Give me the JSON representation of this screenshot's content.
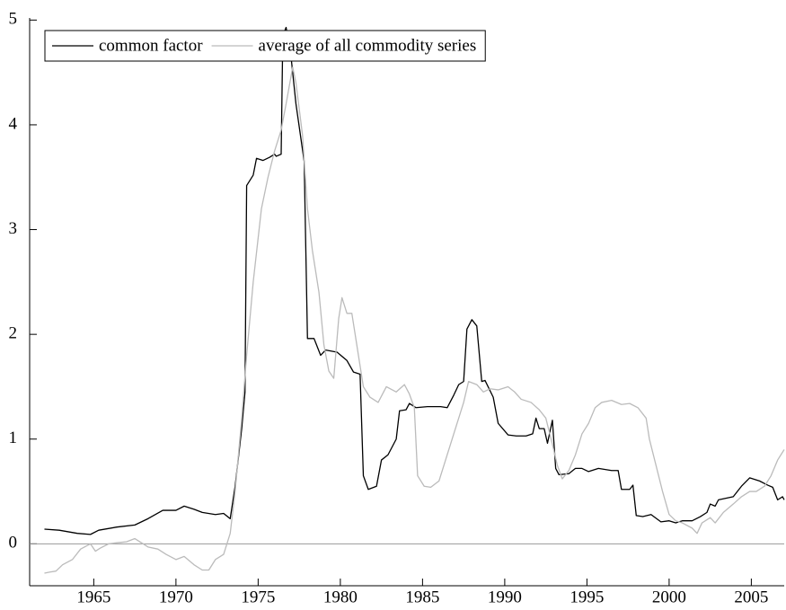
{
  "chart_data": {
    "type": "line",
    "xlim": [
      1961.1,
      2007.0
    ],
    "xticks": [
      1965,
      1970,
      1975,
      1980,
      1985,
      1990,
      1995,
      2000,
      2005
    ],
    "ylim": [
      -0.4,
      5.02
    ],
    "yticks": [
      0,
      1,
      2,
      3,
      4,
      5
    ],
    "zero_line": true,
    "legend": "upper left",
    "series": [
      {
        "name": "common factor",
        "color": "#000000",
        "x": [
          1962.0,
          1962.9,
          1964.0,
          1964.8,
          1965.3,
          1966.4,
          1967.5,
          1968.3,
          1969.2,
          1970.0,
          1970.5,
          1971.1,
          1971.6,
          1972.4,
          1972.9,
          1973.3,
          1973.6,
          1974.0,
          1974.2,
          1974.3,
          1974.7,
          1974.9,
          1975.3,
          1975.7,
          1976.0,
          1976.1,
          1976.4,
          1976.5,
          1976.7,
          1977.0,
          1977.3,
          1977.8,
          1978.0,
          1978.4,
          1978.8,
          1979.1,
          1979.8,
          1980.4,
          1980.8,
          1981.2,
          1981.4,
          1981.7,
          1982.2,
          1982.5,
          1982.9,
          1983.4,
          1983.6,
          1984.0,
          1984.2,
          1984.6,
          1985.3,
          1986.1,
          1986.5,
          1986.9,
          1987.2,
          1987.5,
          1987.7,
          1988.0,
          1988.3,
          1988.6,
          1988.8,
          1989.3,
          1989.6,
          1990.2,
          1990.7,
          1991.3,
          1991.7,
          1991.9,
          1992.1,
          1992.4,
          1992.6,
          1992.9,
          1993.1,
          1993.3,
          1993.9,
          1994.3,
          1994.7,
          1995.1,
          1995.7,
          1996.5,
          1996.9,
          1997.1,
          1997.6,
          1997.8,
          1998.0,
          1998.4,
          1998.9,
          1999.5,
          2000.0,
          2000.4,
          2000.8,
          2001.4,
          2001.9,
          2002.3,
          2002.5,
          2002.8,
          2003.0,
          2003.9,
          2004.4,
          2004.9,
          2005.5,
          2006.0,
          2006.3,
          2006.6,
          2006.9,
          2007.0
        ],
        "values": [
          0.14,
          0.13,
          0.1,
          0.09,
          0.13,
          0.16,
          0.18,
          0.24,
          0.32,
          0.32,
          0.36,
          0.33,
          0.3,
          0.28,
          0.29,
          0.24,
          0.55,
          1.1,
          1.45,
          3.42,
          3.52,
          3.68,
          3.66,
          3.69,
          3.72,
          3.7,
          3.72,
          4.85,
          4.93,
          4.65,
          4.2,
          3.65,
          1.96,
          1.96,
          1.8,
          1.85,
          1.83,
          1.75,
          1.64,
          1.62,
          0.65,
          0.52,
          0.55,
          0.8,
          0.85,
          1.0,
          1.27,
          1.28,
          1.34,
          1.3,
          1.31,
          1.31,
          1.3,
          1.42,
          1.52,
          1.55,
          2.05,
          2.14,
          2.08,
          1.55,
          1.56,
          1.4,
          1.15,
          1.04,
          1.03,
          1.03,
          1.05,
          1.2,
          1.1,
          1.1,
          0.96,
          1.18,
          0.72,
          0.66,
          0.67,
          0.72,
          0.72,
          0.69,
          0.72,
          0.7,
          0.7,
          0.52,
          0.52,
          0.56,
          0.27,
          0.26,
          0.28,
          0.21,
          0.22,
          0.2,
          0.22,
          0.22,
          0.26,
          0.3,
          0.38,
          0.36,
          0.42,
          0.45,
          0.55,
          0.63,
          0.6,
          0.56,
          0.54,
          0.42,
          0.45,
          0.42
        ]
      },
      {
        "name": "average of all commodity series",
        "color": "#bbbbbb",
        "x": [
          1962.0,
          1962.3,
          1962.7,
          1963.1,
          1963.7,
          1964.2,
          1964.8,
          1965.1,
          1965.4,
          1965.9,
          1966.4,
          1967.0,
          1967.5,
          1968.0,
          1968.3,
          1968.9,
          1969.4,
          1970.0,
          1970.5,
          1971.1,
          1971.6,
          1972.0,
          1972.4,
          1972.9,
          1973.3,
          1973.6,
          1974.0,
          1974.3,
          1974.7,
          1975.2,
          1975.6,
          1976.0,
          1976.4,
          1976.7,
          1977.1,
          1977.3,
          1977.7,
          1978.0,
          1978.3,
          1978.7,
          1979.0,
          1979.3,
          1979.6,
          1979.9,
          1980.1,
          1980.4,
          1980.7,
          1981.1,
          1981.4,
          1981.8,
          1982.3,
          1982.8,
          1983.4,
          1983.9,
          1984.2,
          1984.5,
          1984.7,
          1985.1,
          1985.5,
          1986.0,
          1986.4,
          1987.0,
          1987.5,
          1987.8,
          1988.3,
          1988.7,
          1989.1,
          1989.6,
          1990.2,
          1990.6,
          1991.0,
          1991.6,
          1992.1,
          1992.5,
          1992.9,
          1993.2,
          1993.5,
          1993.9,
          1994.3,
          1994.7,
          1995.1,
          1995.5,
          1995.9,
          1996.5,
          1997.1,
          1997.6,
          1998.1,
          1998.6,
          1998.8,
          1999.2,
          1999.6,
          2000.0,
          2000.4,
          2000.8,
          2001.4,
          2001.7,
          2002.0,
          2002.5,
          2002.8,
          2003.3,
          2003.9,
          2004.4,
          2004.9,
          2005.3,
          2005.8,
          2006.2,
          2006.6,
          2007.0
        ],
        "values": [
          -0.28,
          -0.27,
          -0.26,
          -0.2,
          -0.15,
          -0.05,
          0.0,
          -0.07,
          -0.04,
          0.0,
          0.01,
          0.02,
          0.05,
          0.0,
          -0.03,
          -0.05,
          -0.1,
          -0.15,
          -0.12,
          -0.2,
          -0.25,
          -0.25,
          -0.15,
          -0.1,
          0.1,
          0.5,
          1.2,
          1.8,
          2.5,
          3.2,
          3.5,
          3.75,
          3.95,
          4.2,
          4.55,
          4.4,
          3.9,
          3.2,
          2.8,
          2.4,
          1.9,
          1.65,
          1.58,
          2.15,
          2.35,
          2.2,
          2.2,
          1.8,
          1.5,
          1.4,
          1.35,
          1.5,
          1.45,
          1.52,
          1.43,
          1.3,
          0.65,
          0.55,
          0.54,
          0.6,
          0.8,
          1.1,
          1.35,
          1.55,
          1.52,
          1.45,
          1.48,
          1.47,
          1.5,
          1.45,
          1.38,
          1.35,
          1.28,
          1.2,
          0.95,
          0.75,
          0.62,
          0.7,
          0.85,
          1.05,
          1.15,
          1.3,
          1.35,
          1.37,
          1.33,
          1.34,
          1.3,
          1.2,
          1.0,
          0.75,
          0.5,
          0.28,
          0.22,
          0.2,
          0.15,
          0.1,
          0.2,
          0.25,
          0.2,
          0.3,
          0.38,
          0.45,
          0.5,
          0.5,
          0.55,
          0.65,
          0.8,
          0.9
        ]
      }
    ]
  }
}
